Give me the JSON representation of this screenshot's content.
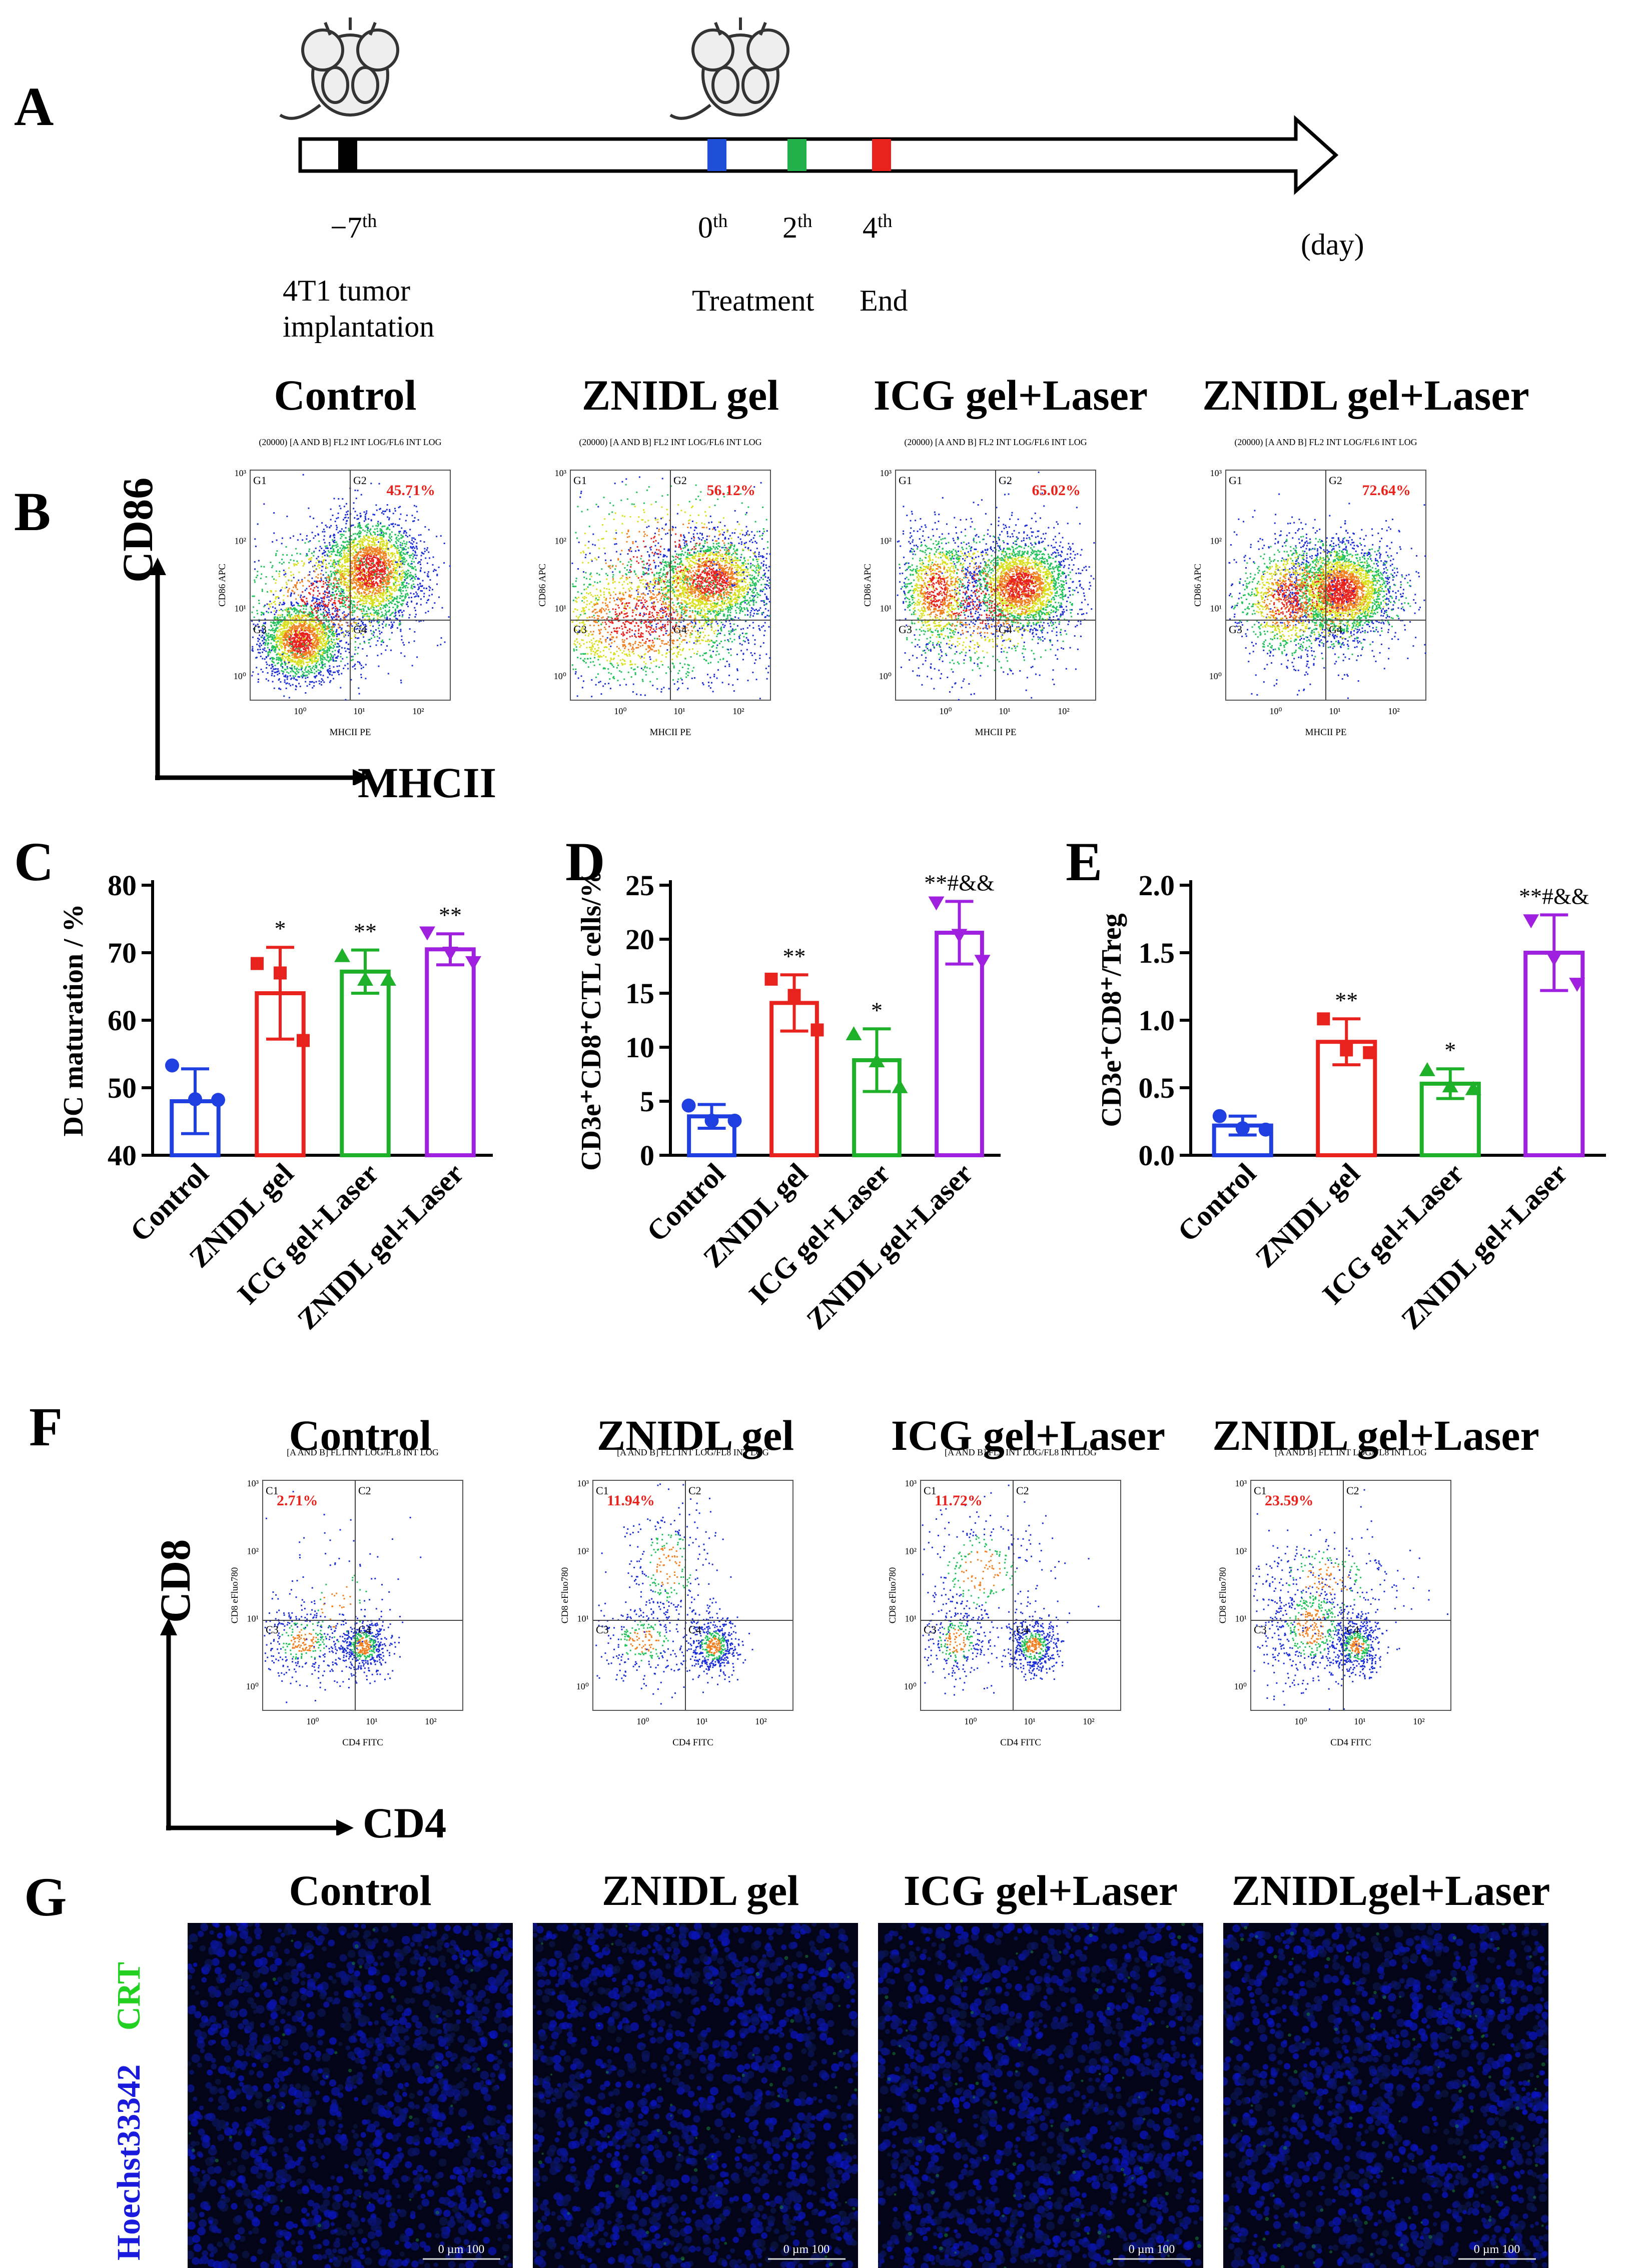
{
  "panels": {
    "A": "A",
    "B": "B",
    "C": "C",
    "D": "D",
    "E": "E",
    "F": "F",
    "G": "G"
  },
  "timeline": {
    "points": [
      {
        "day": "−7",
        "sup": "th",
        "color": "#000000",
        "note": "4T1 tumor",
        "note2": "implantation"
      },
      {
        "day": "0",
        "sup": "th",
        "color": "#1f4fd6",
        "note": "Treatment"
      },
      {
        "day": "2",
        "sup": "th",
        "color": "#22b04a",
        "note": ""
      },
      {
        "day": "4",
        "sup": "th",
        "color": "#e8231d",
        "note": "End"
      }
    ],
    "unit": "(day)"
  },
  "groups": [
    "Control",
    "ZNIDL gel",
    "ICG gel+Laser",
    "ZNIDL gel+Laser"
  ],
  "groups_G": [
    "Control",
    "ZNIDL gel",
    "ICG gel+Laser",
    "ZNIDLgel+Laser"
  ],
  "colors": {
    "control": "#1f3fe0",
    "znidl": "#e8231d",
    "icg": "#1fb02a",
    "znidl_laser": "#a020e0"
  },
  "flow_B": {
    "header": "(20000) [A AND B] FL2 INT LOG/FL6 INT LOG",
    "ylabel": "CD86 APC",
    "xlabel": "MHCII PE",
    "gates": [
      "G1",
      "G2",
      "G3",
      "G4"
    ],
    "percents": [
      "45.71%",
      "56.12%",
      "65.02%",
      "72.64%"
    ],
    "axis_y": "CD86",
    "axis_x": "MHCII"
  },
  "flow_F": {
    "header": "[A AND B] FL1 INT LOG/FL8 INT LOG",
    "ylabel": "CD8 eFluo780",
    "xlabel": "CD4 FITC",
    "gates": [
      "C1",
      "C2",
      "C3",
      "C4"
    ],
    "percents": [
      "2.71%",
      "11.94%",
      "11.72%",
      "23.59%"
    ],
    "axis_y": "CD8",
    "axis_x": "CD4"
  },
  "ticks_log_y": [
    "10³",
    "10²",
    "10¹",
    "10⁰"
  ],
  "ticks_log_x": [
    "10⁰",
    "10¹",
    "10²"
  ],
  "chart_data": [
    {
      "type": "bar",
      "panel": "C",
      "categories": [
        "Control",
        "ZNIDL gel",
        "ICG gel+Laser",
        "ZNIDL gel+Laser"
      ],
      "values": [
        48.0,
        64.0,
        67.2,
        70.5
      ],
      "errors": [
        4.8,
        6.8,
        3.2,
        2.3
      ],
      "points": [
        [
          53.3,
          48.3,
          48.2
        ],
        [
          68.4,
          67.0,
          57.0
        ],
        [
          69.5,
          66.0,
          66.0
        ],
        [
          73.0,
          70.0,
          68.6
        ]
      ],
      "sig": [
        "",
        "*",
        "**",
        "**"
      ],
      "ylabel": "DC maturation / %",
      "ylim": [
        40,
        80
      ],
      "yticks": [
        40,
        50,
        60,
        70,
        80
      ]
    },
    {
      "type": "bar",
      "panel": "D",
      "categories": [
        "Control",
        "ZNIDL gel",
        "ICG gel+Laser",
        "ZNIDL gel+Laser"
      ],
      "values": [
        3.6,
        14.1,
        8.8,
        20.6
      ],
      "errors": [
        1.1,
        2.6,
        2.9,
        2.9
      ],
      "points": [
        [
          4.6,
          3.2,
          3.2
        ],
        [
          16.3,
          14.8,
          11.6
        ],
        [
          11.2,
          8.7,
          6.3
        ],
        [
          23.4,
          20.4,
          18.0
        ]
      ],
      "sig": [
        "",
        "**",
        "*",
        "**#&&"
      ],
      "ylabel": "CD3e⁺CD8⁺CTL cells/%",
      "ylim": [
        0,
        25
      ],
      "yticks": [
        0,
        5,
        10,
        15,
        20,
        25
      ]
    },
    {
      "type": "bar",
      "panel": "E",
      "categories": [
        "Control",
        "ZNIDL gel",
        "ICG gel+Laser",
        "ZNIDL gel+Laser"
      ],
      "values": [
        0.22,
        0.84,
        0.53,
        1.5
      ],
      "errors": [
        0.07,
        0.17,
        0.11,
        0.28
      ],
      "points": [
        [
          0.29,
          0.2,
          0.19
        ],
        [
          1.01,
          0.78,
          0.76
        ],
        [
          0.63,
          0.51,
          0.49
        ],
        [
          1.74,
          1.46,
          1.27
        ]
      ],
      "sig": [
        "",
        "**",
        "*",
        "**#&&"
      ],
      "ylabel": "CD3e⁺CD8⁺/Treg",
      "ylim": [
        0,
        2.0
      ],
      "yticks": [
        "0.0",
        "0.5",
        "1.0",
        "1.5",
        "2.0"
      ]
    }
  ],
  "if_G": {
    "label_green": "CRT",
    "label_blue": "Hoechst33342",
    "scalebar": "0     µm     100"
  }
}
